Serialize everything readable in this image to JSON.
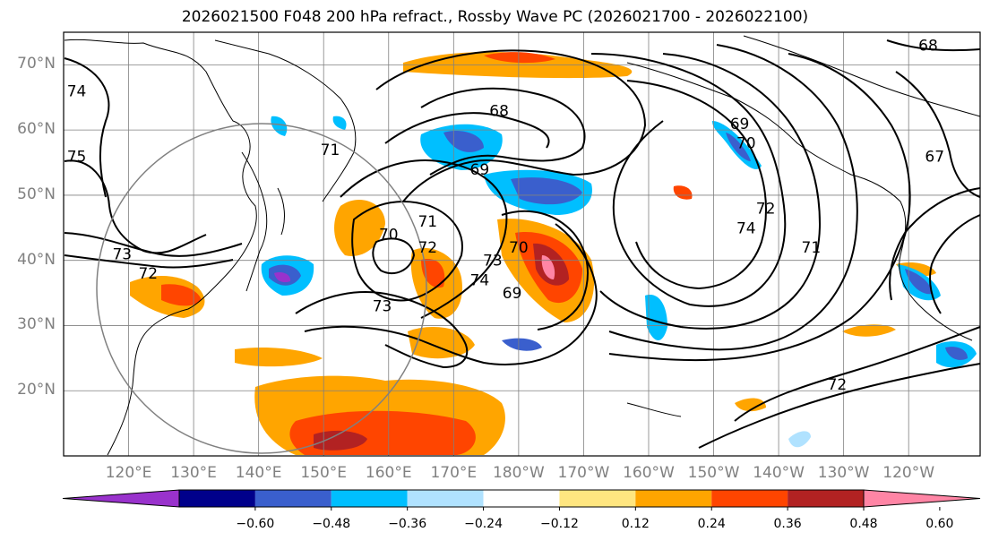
{
  "figure": {
    "title": "2026021500 F048 200 hPa refract., Rossby Wave PC (2026021700 - 2026022100)"
  },
  "map": {
    "projection": "cylindrical",
    "lon_range": [
      110,
      251
    ],
    "lat_range": [
      10,
      75
    ],
    "lat_labels": [
      "70°N",
      "60°N",
      "50°N",
      "40°N",
      "30°N",
      "20°N"
    ],
    "lat_values": [
      70,
      60,
      50,
      40,
      30,
      20
    ],
    "lon_labels": [
      "120°E",
      "130°E",
      "140°E",
      "150°E",
      "160°E",
      "170°E",
      "180°W",
      "170°W",
      "160°W",
      "150°W",
      "140°W",
      "130°W",
      "120°W"
    ],
    "lon_values": [
      120,
      130,
      140,
      150,
      160,
      170,
      180,
      190,
      200,
      210,
      220,
      230,
      240
    ],
    "contour_labels": [
      {
        "text": "74",
        "lon": 112,
        "lat": 66
      },
      {
        "text": "75",
        "lon": 112,
        "lat": 56
      },
      {
        "text": "73",
        "lon": 119,
        "lat": 41
      },
      {
        "text": "72",
        "lon": 123,
        "lat": 38
      },
      {
        "text": "71",
        "lon": 151,
        "lat": 57
      },
      {
        "text": "68",
        "lon": 177,
        "lat": 63
      },
      {
        "text": "69",
        "lon": 174,
        "lat": 54
      },
      {
        "text": "70",
        "lon": 160,
        "lat": 44
      },
      {
        "text": "71",
        "lon": 166,
        "lat": 46
      },
      {
        "text": "72",
        "lon": 166,
        "lat": 42
      },
      {
        "text": "73",
        "lon": 159,
        "lat": 33
      },
      {
        "text": "74",
        "lon": 174,
        "lat": 37
      },
      {
        "text": "73",
        "lon": 176,
        "lat": 40
      },
      {
        "text": "70",
        "lon": 180,
        "lat": 42
      },
      {
        "text": "69",
        "lon": 179,
        "lat": 35
      },
      {
        "text": "69",
        "lon": 214,
        "lat": 61
      },
      {
        "text": "70",
        "lon": 215,
        "lat": 58
      },
      {
        "text": "72",
        "lon": 218,
        "lat": 48
      },
      {
        "text": "74",
        "lon": 215,
        "lat": 45
      },
      {
        "text": "71",
        "lon": 225,
        "lat": 42
      },
      {
        "text": "72",
        "lon": 229,
        "lat": 21
      },
      {
        "text": "67",
        "lon": 244,
        "lat": 56
      },
      {
        "text": "68",
        "lon": 243,
        "lat": 73
      }
    ]
  },
  "colorbar": {
    "ticks": [
      "-0.60",
      "-0.48",
      "-0.36",
      "-0.24",
      "-0.12",
      "0.12",
      "0.24",
      "0.36",
      "0.48",
      "0.60"
    ],
    "colors": [
      "#9932cc",
      "#00008b",
      "#3a5fcd",
      "#00bfff",
      "#b0e2ff",
      "#ffffff",
      "#ffe680",
      "#ffa500",
      "#ff4500",
      "#b22222",
      "#ff85a5"
    ]
  }
}
